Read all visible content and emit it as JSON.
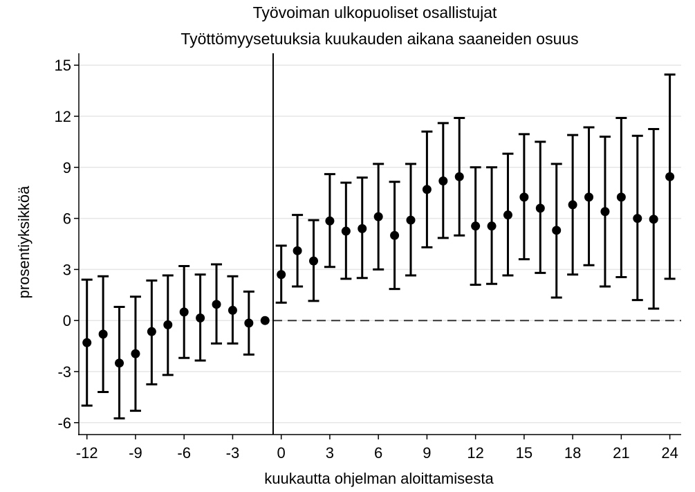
{
  "chart_data": {
    "type": "scatter",
    "title": "Työvoiman ulkopuoliset osallistujat",
    "subtitle": "Työttömyysetuuksia kuukauden aikana saaneiden osuus",
    "xlabel": "kuukautta ohjelman aloittamisesta",
    "ylabel": "prosentiyksikköä",
    "xlim": [
      -12.5,
      24.7
    ],
    "ylim": [
      -6.7,
      15.7
    ],
    "xticks": [
      -12,
      -9,
      -6,
      -3,
      0,
      3,
      6,
      9,
      12,
      15,
      18,
      21,
      24
    ],
    "yticks": [
      -6,
      -3,
      0,
      3,
      6,
      9,
      12,
      15
    ],
    "grid": true,
    "reference_lines": {
      "vertical_at_x": -0.5,
      "horizontal_dashed_at_y": 0
    },
    "marker_color": "#000000",
    "series": [
      {
        "x": [
          -12,
          -11,
          -10,
          -9,
          -8,
          -7,
          -6,
          -5,
          -4,
          -3,
          -2,
          -1,
          0,
          1,
          2,
          3,
          4,
          5,
          6,
          7,
          8,
          9,
          10,
          11,
          12,
          13,
          14,
          15,
          16,
          17,
          18,
          19,
          20,
          21,
          22,
          23,
          24
        ],
        "y": [
          -1.3,
          -0.8,
          -2.5,
          -1.95,
          -0.65,
          -0.25,
          0.5,
          0.15,
          0.95,
          0.6,
          -0.15,
          0.0,
          2.7,
          4.1,
          3.5,
          5.85,
          5.25,
          5.4,
          6.1,
          5.0,
          5.9,
          7.7,
          8.2,
          8.45,
          5.55,
          5.55,
          6.2,
          7.25,
          6.6,
          5.3,
          6.8,
          7.25,
          6.4,
          7.25,
          6.0,
          5.95,
          8.45
        ],
        "lower": [
          -5.0,
          -4.2,
          -5.75,
          -5.3,
          -3.75,
          -3.2,
          -2.2,
          -2.35,
          -1.35,
          -1.35,
          -2.0,
          0.0,
          1.05,
          2.0,
          1.15,
          3.15,
          2.45,
          2.5,
          3.0,
          1.85,
          2.65,
          4.3,
          4.85,
          5.0,
          2.1,
          2.15,
          2.65,
          3.6,
          2.8,
          1.35,
          2.7,
          3.25,
          2.0,
          2.55,
          1.2,
          0.7,
          2.45
        ],
        "upper": [
          2.4,
          2.6,
          0.8,
          1.4,
          2.35,
          2.65,
          3.2,
          2.7,
          3.3,
          2.6,
          1.7,
          0.0,
          4.4,
          6.2,
          5.9,
          8.6,
          8.1,
          8.4,
          9.2,
          8.15,
          9.2,
          11.1,
          11.6,
          11.9,
          9.0,
          9.0,
          9.8,
          10.95,
          10.5,
          9.2,
          10.9,
          11.35,
          10.8,
          11.9,
          10.85,
          11.25,
          14.45
        ]
      }
    ]
  }
}
